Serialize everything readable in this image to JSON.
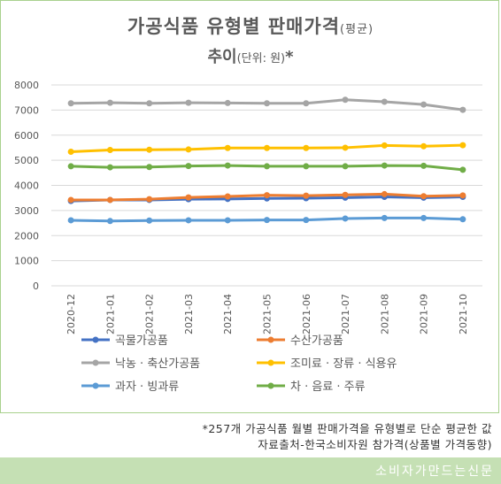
{
  "chart_data": {
    "type": "line",
    "title_main": "가공식품 유형별 판매가격",
    "title_paren": "(평균)",
    "subtitle_main": "추이",
    "subtitle_paren": "(단위: 원)",
    "subtitle_mark": "*",
    "categories": [
      "2020-12",
      "2021-01",
      "2021-02",
      "2021-03",
      "2021-04",
      "2021-05",
      "2021-06",
      "2021-07",
      "2021-08",
      "2021-09",
      "2021-10"
    ],
    "ylim": [
      0,
      8000
    ],
    "y_ticks": [
      "0",
      "1000",
      "2000",
      "3000",
      "4000",
      "5000",
      "6000",
      "7000",
      "8000"
    ],
    "grid": true,
    "legend_position": "bottom",
    "series": [
      {
        "name": "곡물가공품",
        "color": "#4472c4",
        "values": [
          3380,
          3420,
          3420,
          3450,
          3460,
          3480,
          3490,
          3510,
          3540,
          3510,
          3540
        ]
      },
      {
        "name": "수산가공품",
        "color": "#ed7d31",
        "values": [
          3420,
          3420,
          3450,
          3520,
          3560,
          3610,
          3590,
          3620,
          3650,
          3570,
          3600
        ]
      },
      {
        "name": "낙농 · 축산가공품",
        "color": "#a5a5a5",
        "values": [
          7270,
          7290,
          7270,
          7290,
          7280,
          7270,
          7270,
          7410,
          7330,
          7220,
          7010
        ]
      },
      {
        "name": "조미료 · 장류 · 식용유",
        "color": "#ffc000",
        "values": [
          5340,
          5410,
          5420,
          5430,
          5490,
          5490,
          5490,
          5500,
          5590,
          5560,
          5600
        ]
      },
      {
        "name": "과자 · 빙과류",
        "color": "#5b9bd5",
        "values": [
          2610,
          2580,
          2600,
          2610,
          2610,
          2620,
          2620,
          2680,
          2700,
          2700,
          2650
        ]
      },
      {
        "name": "차 · 음료 · 주류",
        "color": "#70ad47",
        "values": [
          4760,
          4720,
          4730,
          4770,
          4790,
          4760,
          4760,
          4760,
          4790,
          4780,
          4620
        ]
      }
    ]
  },
  "notes": {
    "line1": "*257개 가공식품 월별 판매가격을 유형별로 단순 평균한 값",
    "line2": "자료출처-한국소비자원 참가격(상품별 가격동향)"
  },
  "footer": {
    "brand": "소비자가만드는신문"
  }
}
